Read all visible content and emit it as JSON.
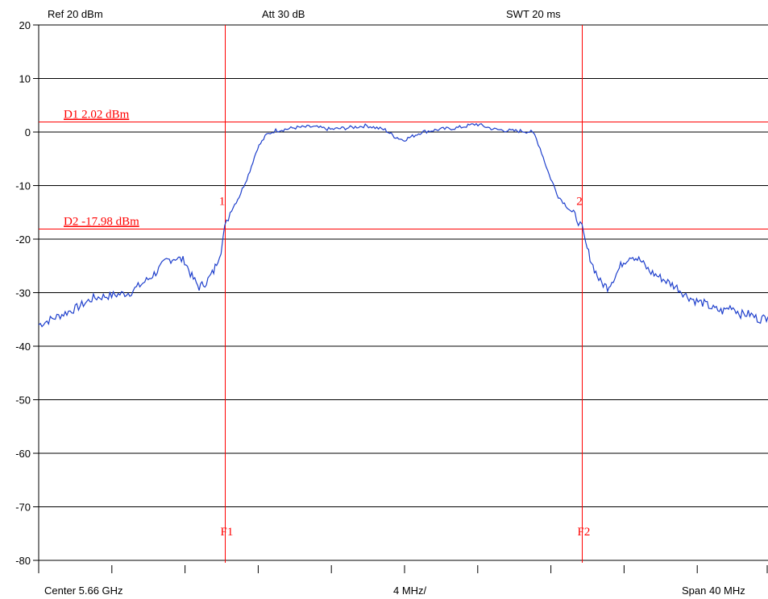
{
  "header": {
    "ref": "Ref 20 dBm",
    "att": "Att  30 dB",
    "swt": "SWT 20 ms"
  },
  "footer": {
    "center": "Center 5.66 GHz",
    "div": "4 MHz/",
    "span": "Span 40 MHz"
  },
  "colors": {
    "trace": "#1e3fcc",
    "marker": "#ff0000",
    "grid": "#000000"
  },
  "chart_data": {
    "type": "line",
    "title": "",
    "xlabel": "",
    "ylabel": "",
    "x_unit": "MHz offset from center",
    "xlim": [
      -20,
      20
    ],
    "ylim": [
      -80,
      20
    ],
    "y_ticks": [
      20,
      10,
      0,
      -10,
      -20,
      -30,
      -40,
      -50,
      -60,
      -70,
      -80
    ],
    "y_tick_labels": [
      "20",
      "10",
      "0",
      "-10",
      "-20",
      "-30",
      "-40",
      "-50",
      "-60",
      "-70",
      "-80"
    ],
    "x_divisions": 10,
    "grid": "horizontal",
    "hlines": [
      {
        "name": "D1",
        "value": 2.02,
        "label": "D1 2.02 dBm"
      },
      {
        "name": "D2",
        "value": -17.98,
        "label": "D2 -17.98 dBm"
      }
    ],
    "vlines": [
      {
        "name": "F1",
        "value": -9.8,
        "label": "F1"
      },
      {
        "name": "F2",
        "value": 9.8,
        "label": "F2"
      }
    ],
    "markers": [
      {
        "label": "1",
        "x": -9.8,
        "y": -17.98
      },
      {
        "label": "2",
        "x": 9.8,
        "y": -17.98
      }
    ],
    "series": [
      {
        "x": [
          -20,
          -19,
          -18,
          -17,
          -16,
          -15,
          -14,
          -13.5,
          -13,
          -12.5,
          -12,
          -11.6,
          -11.2,
          -10.8,
          -10.4,
          -10.0,
          -9.8,
          -9.5,
          -9.0,
          -8.5,
          -8.0,
          -7.5,
          -7.2,
          -7.0,
          -6.5,
          -6.0,
          -5.0,
          -4.0,
          -3.0,
          -2.0,
          -1.0,
          -0.5,
          0.0,
          0.5,
          1.0,
          2.0,
          3.0,
          4.0,
          5.0,
          6.0,
          6.5,
          7.0,
          7.2,
          7.5,
          8.0,
          8.5,
          9.0,
          9.5,
          9.8,
          10.0,
          10.4,
          10.8,
          11.2,
          11.6,
          12.0,
          12.5,
          13.0,
          13.5,
          14.0,
          14.5,
          15.0,
          15.5,
          16.0,
          16.5,
          17.0,
          17.5,
          18.0,
          18.5,
          19.0,
          19.5,
          20.0
        ],
        "y": [
          -36,
          -34.5,
          -33,
          -31,
          -30.5,
          -30,
          -27.5,
          -26,
          -24,
          -23.5,
          -24,
          -27,
          -29,
          -28,
          -26,
          -22,
          -18,
          -15,
          -12,
          -8,
          -3,
          -0.5,
          0,
          0.3,
          0.5,
          0.8,
          1.0,
          0.5,
          0.8,
          1.2,
          0.4,
          -0.8,
          -1.5,
          -0.8,
          0.0,
          0.5,
          0.8,
          1.5,
          0.5,
          0.2,
          0.2,
          0.0,
          -0.5,
          -3,
          -8,
          -12,
          -14,
          -16,
          -18,
          -21,
          -25,
          -28,
          -29,
          -27,
          -24.5,
          -23,
          -24,
          -26,
          -27,
          -28,
          -29,
          -30.5,
          -31.5,
          -32,
          -33,
          -33.5,
          -32.5,
          -34,
          -34,
          -35,
          -34.5
        ]
      }
    ]
  }
}
